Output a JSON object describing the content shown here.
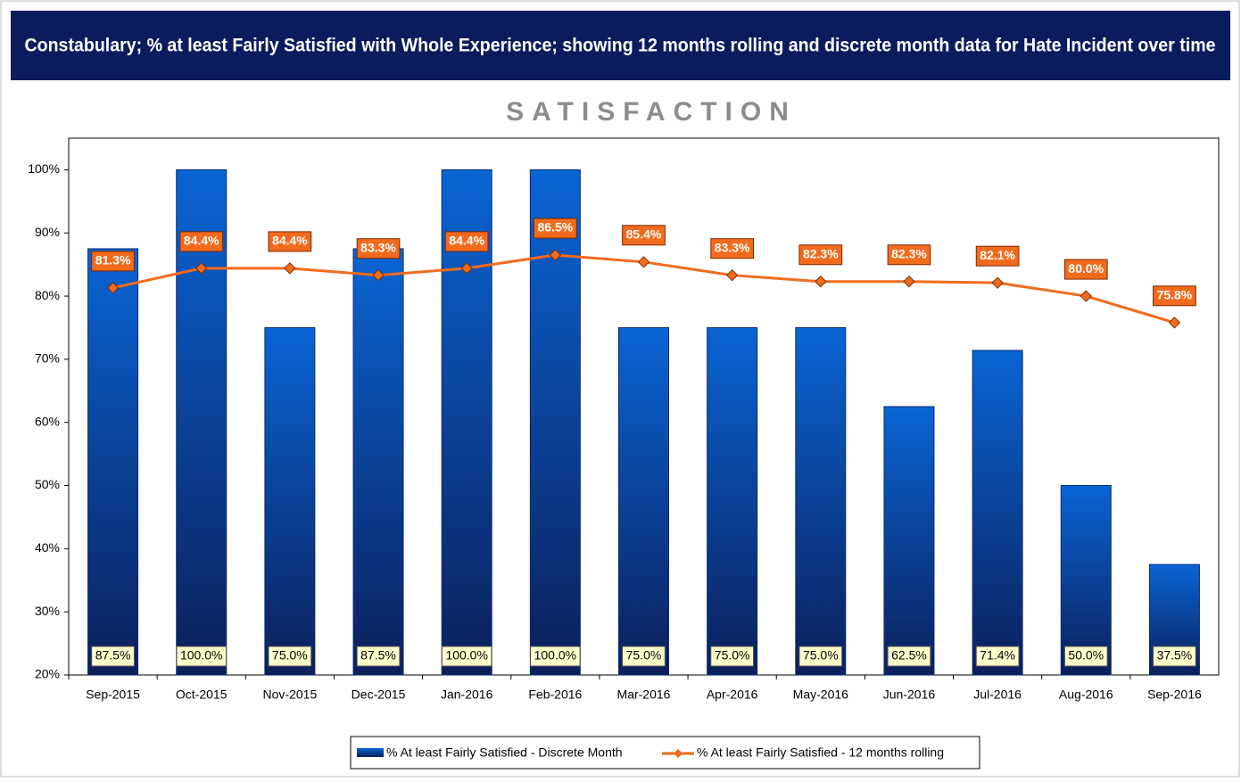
{
  "chart_data": {
    "type": "bar",
    "title": "Constabulary; % at least Fairly Satisfied with Whole Experience; showing 12 months rolling and discrete month data for Hate Incident over time",
    "subtitle": "SATISFACTION",
    "categories": [
      "Sep-2015",
      "Oct-2015",
      "Nov-2015",
      "Dec-2015",
      "Jan-2016",
      "Feb-2016",
      "Mar-2016",
      "Apr-2016",
      "May-2016",
      "Jun-2016",
      "Jul-2016",
      "Aug-2016",
      "Sep-2016"
    ],
    "series": [
      {
        "name": "% At least Fairly Satisfied - Discrete Month",
        "type": "bar",
        "color": "#0a5fcc",
        "values": [
          87.5,
          100,
          75,
          87.5,
          100,
          100,
          75,
          75,
          75,
          62.5,
          71.4,
          50,
          37.5
        ],
        "value_labels": [
          "87.5%",
          "100.0%",
          "75.0%",
          "87.5%",
          "100.0%",
          "100.0%",
          "75.0%",
          "75.0%",
          "75.0%",
          "62.5%",
          "71.4%",
          "50.0%",
          "37.5%"
        ]
      },
      {
        "name": "% At least Fairly Satisfied - 12 months rolling",
        "type": "line",
        "color": "#f26b1d",
        "values": [
          81.3,
          84.4,
          84.4,
          83.3,
          84.4,
          86.5,
          85.4,
          83.3,
          82.3,
          82.3,
          82.1,
          80.0,
          75.8
        ],
        "value_labels": [
          "81.3%",
          "84.4%",
          "84.4%",
          "83.3%",
          "84.4%",
          "86.5%",
          "85.4%",
          "83.3%",
          "82.3%",
          "82.3%",
          "82.1%",
          "80.0%",
          "75.8%"
        ]
      }
    ],
    "ylim": [
      20,
      105
    ],
    "yticks": [
      {
        "value": 20,
        "label": "20%"
      },
      {
        "value": 30,
        "label": "30%"
      },
      {
        "value": 40,
        "label": "40%"
      },
      {
        "value": 50,
        "label": "50%"
      },
      {
        "value": 60,
        "label": "60%"
      },
      {
        "value": 70,
        "label": "70%"
      },
      {
        "value": 80,
        "label": "80%"
      },
      {
        "value": 90,
        "label": "90%"
      },
      {
        "value": 100,
        "label": "100%"
      }
    ],
    "legend": "bottom"
  }
}
